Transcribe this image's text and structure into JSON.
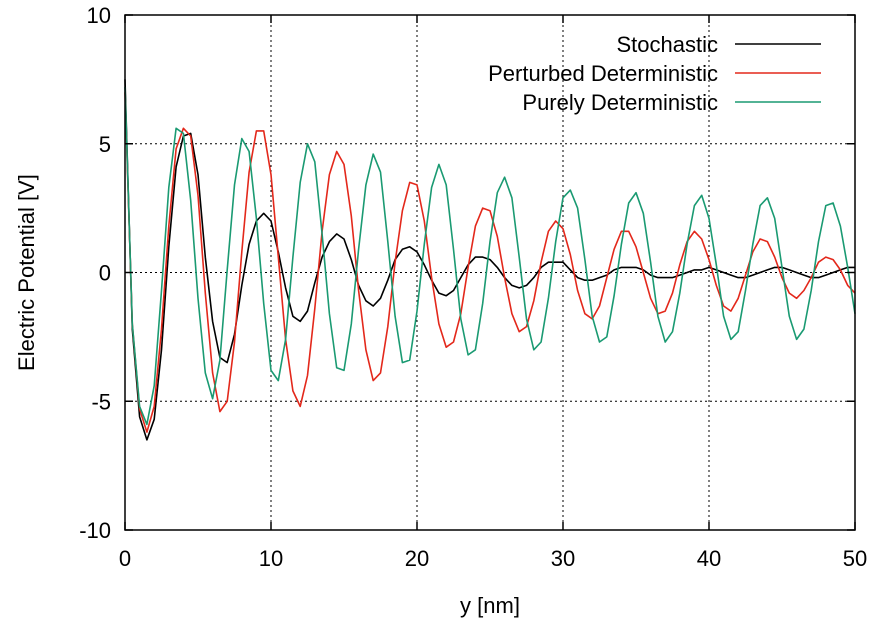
{
  "chart_data": {
    "type": "line",
    "xlabel": "y [nm]",
    "ylabel": "Electric Potential [V]",
    "xlim": [
      0,
      50
    ],
    "ylim": [
      -10,
      10
    ],
    "xticks": [
      "0",
      "10",
      "20",
      "30",
      "40",
      "50"
    ],
    "yticks": [
      "-10",
      "-5",
      "0",
      "5",
      "10"
    ],
    "grid": true,
    "legend_position": "top-right",
    "x": [
      0,
      0.5,
      1,
      1.5,
      2,
      2.5,
      3,
      3.5,
      4,
      4.5,
      5,
      5.5,
      6,
      6.5,
      7,
      7.5,
      8,
      8.5,
      9,
      9.5,
      10,
      10.5,
      11,
      11.5,
      12,
      12.5,
      13,
      13.5,
      14,
      14.5,
      15,
      15.5,
      16,
      16.5,
      17,
      17.5,
      18,
      18.5,
      19,
      19.5,
      20,
      20.5,
      21,
      21.5,
      22,
      22.5,
      23,
      23.5,
      24,
      24.5,
      25,
      25.5,
      26,
      26.5,
      27,
      27.5,
      28,
      28.5,
      29,
      29.5,
      30,
      30.5,
      31,
      31.5,
      32,
      32.5,
      33,
      33.5,
      34,
      34.5,
      35,
      35.5,
      36,
      36.5,
      37,
      37.5,
      38,
      38.5,
      39,
      39.5,
      40,
      40.5,
      41,
      41.5,
      42,
      42.5,
      43,
      43.5,
      44,
      44.5,
      45,
      45.5,
      46,
      46.5,
      47,
      47.5,
      48,
      48.5,
      49,
      49.5,
      50
    ],
    "series": [
      {
        "name": "Stochastic",
        "color": "#000000",
        "values": [
          7.5,
          -2.2,
          -5.6,
          -6.5,
          -5.7,
          -3.0,
          1.0,
          4.1,
          5.3,
          5.4,
          3.8,
          0.6,
          -1.9,
          -3.3,
          -3.5,
          -2.4,
          -0.5,
          1.1,
          2.0,
          2.3,
          2.0,
          0.8,
          -0.6,
          -1.7,
          -1.9,
          -1.5,
          -0.4,
          0.6,
          1.2,
          1.5,
          1.3,
          0.5,
          -0.5,
          -1.1,
          -1.3,
          -1.0,
          -0.3,
          0.5,
          0.9,
          1.0,
          0.8,
          0.3,
          -0.3,
          -0.8,
          -0.9,
          -0.7,
          -0.2,
          0.3,
          0.6,
          0.6,
          0.5,
          0.2,
          -0.2,
          -0.5,
          -0.6,
          -0.5,
          -0.2,
          0.2,
          0.4,
          0.4,
          0.4,
          0.1,
          -0.2,
          -0.3,
          -0.3,
          -0.2,
          -0.1,
          0.1,
          0.2,
          0.2,
          0.2,
          0.1,
          -0.1,
          -0.2,
          -0.2,
          -0.2,
          -0.1,
          0.0,
          0.1,
          0.1,
          0.2,
          0.1,
          0.0,
          -0.1,
          -0.2,
          -0.2,
          -0.1,
          0.0,
          0.1,
          0.2,
          0.2,
          0.1,
          0.0,
          -0.1,
          -0.2,
          -0.2,
          -0.1,
          0.0,
          0.1,
          0.2,
          0.2
        ]
      },
      {
        "name": "Perturbed Deterministic",
        "color": "#e3281b",
        "values": [
          7.0,
          -2.0,
          -5.3,
          -6.2,
          -5.2,
          -2.2,
          1.8,
          4.8,
          5.6,
          5.3,
          3.0,
          -0.8,
          -3.9,
          -5.4,
          -5.0,
          -2.7,
          0.8,
          3.9,
          5.5,
          5.5,
          3.8,
          0.6,
          -2.6,
          -4.6,
          -5.2,
          -4.0,
          -1.4,
          1.6,
          3.8,
          4.7,
          4.2,
          2.2,
          -0.7,
          -3.0,
          -4.2,
          -3.9,
          -2.1,
          0.4,
          2.4,
          3.5,
          3.4,
          2.0,
          -0.2,
          -2.0,
          -2.9,
          -2.7,
          -1.6,
          0.2,
          1.8,
          2.5,
          2.4,
          1.4,
          -0.2,
          -1.6,
          -2.3,
          -2.1,
          -1.1,
          0.4,
          1.6,
          2.0,
          1.7,
          0.7,
          -0.7,
          -1.6,
          -1.8,
          -1.3,
          -0.2,
          0.9,
          1.6,
          1.6,
          1.0,
          0.0,
          -1.0,
          -1.6,
          -1.5,
          -0.8,
          0.3,
          1.2,
          1.6,
          1.3,
          0.5,
          -0.5,
          -1.3,
          -1.5,
          -1.0,
          -0.1,
          0.8,
          1.3,
          1.2,
          0.6,
          -0.2,
          -0.8,
          -1.0,
          -0.7,
          -0.2,
          0.4,
          0.6,
          0.5,
          0.1,
          -0.5,
          -0.8
        ]
      },
      {
        "name": "Purely Deterministic",
        "color": "#1a9a72",
        "values": [
          7.2,
          -2.0,
          -5.2,
          -5.9,
          -4.4,
          -0.7,
          3.3,
          5.6,
          5.4,
          2.8,
          -1.0,
          -3.9,
          -4.9,
          -3.4,
          0.1,
          3.4,
          5.2,
          4.7,
          2.1,
          -1.2,
          -3.8,
          -4.2,
          -2.6,
          0.6,
          3.5,
          5.0,
          4.3,
          1.5,
          -1.6,
          -3.7,
          -3.8,
          -2.0,
          0.9,
          3.4,
          4.6,
          3.9,
          1.2,
          -1.7,
          -3.5,
          -3.4,
          -1.5,
          1.1,
          3.3,
          4.2,
          3.4,
          0.9,
          -1.8,
          -3.2,
          -3.0,
          -1.2,
          1.2,
          3.1,
          3.7,
          2.9,
          0.6,
          -1.8,
          -3.0,
          -2.7,
          -1.0,
          1.2,
          2.9,
          3.2,
          2.5,
          0.5,
          -1.7,
          -2.7,
          -2.5,
          -0.9,
          1.1,
          2.7,
          3.1,
          2.3,
          0.4,
          -1.7,
          -2.7,
          -2.3,
          -0.8,
          1.1,
          2.6,
          3.0,
          2.1,
          0.3,
          -1.7,
          -2.6,
          -2.3,
          -0.7,
          1.1,
          2.6,
          2.9,
          2.1,
          0.2,
          -1.7,
          -2.6,
          -2.2,
          -0.7,
          1.2,
          2.6,
          2.7,
          1.8,
          0.2,
          -1.6
        ]
      }
    ]
  }
}
